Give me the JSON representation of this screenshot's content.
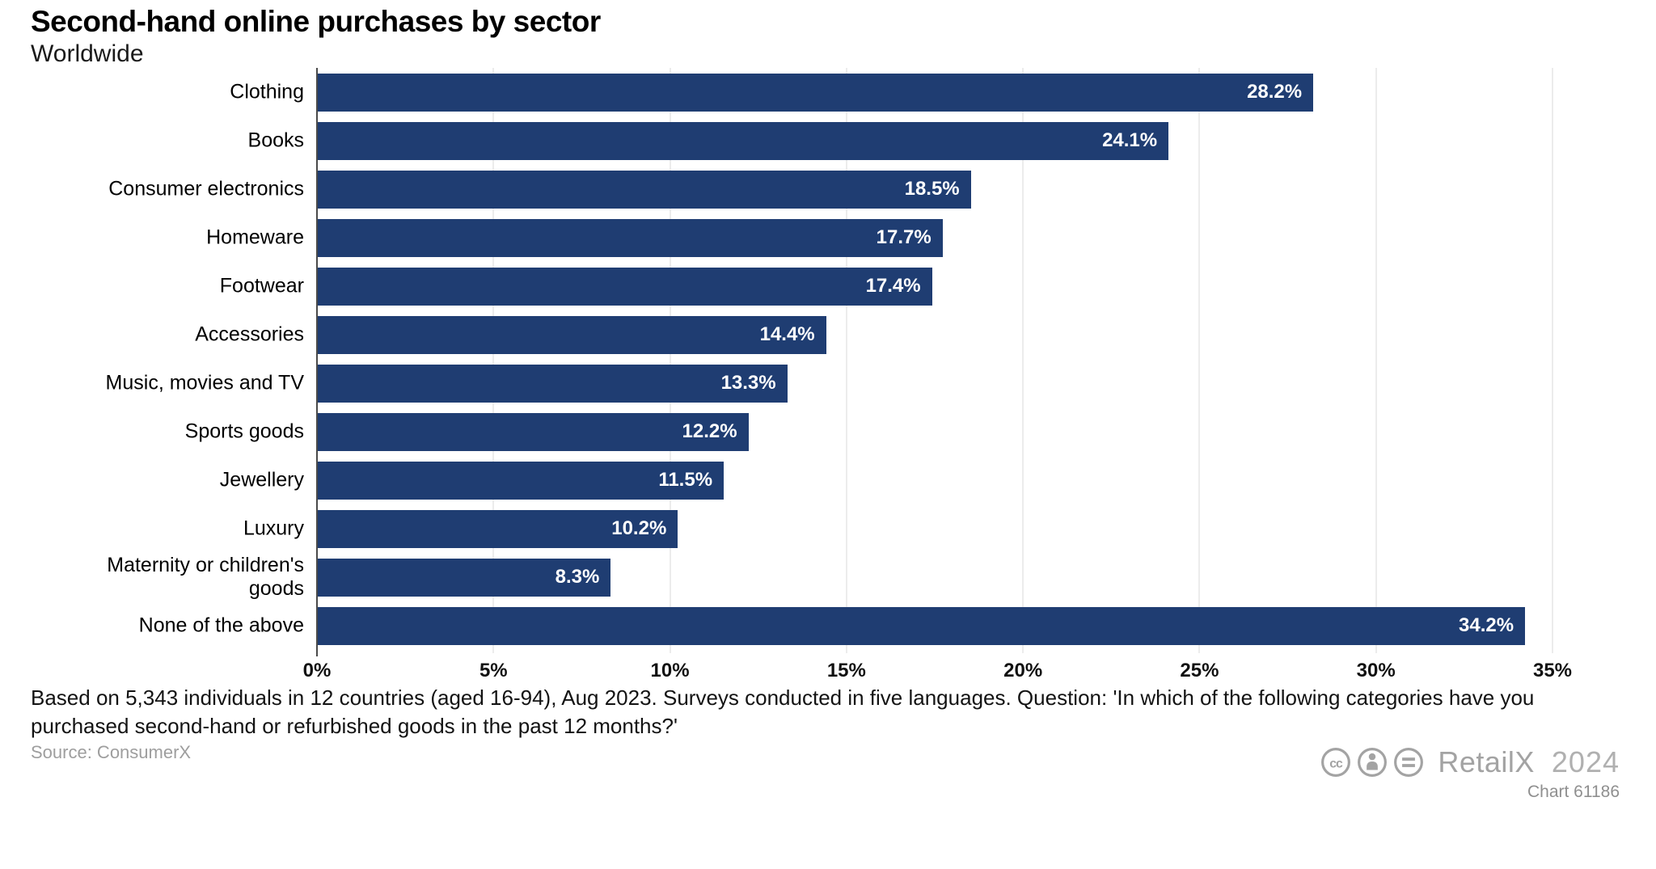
{
  "header": {
    "title": "Second-hand online purchases by sector",
    "subtitle": "Worldwide"
  },
  "chart_data": {
    "type": "bar",
    "orientation": "horizontal",
    "title": "Second-hand online purchases by sector",
    "subtitle": "Worldwide",
    "categories": [
      "Clothing",
      "Books",
      "Consumer electronics",
      "Homeware",
      "Footwear",
      "Accessories",
      "Music, movies and TV",
      "Sports goods",
      "Jewellery",
      "Luxury",
      "Maternity or children's goods",
      "None of the above"
    ],
    "values": [
      28.2,
      24.1,
      18.5,
      17.7,
      17.4,
      14.4,
      13.3,
      12.2,
      11.5,
      10.2,
      8.3,
      34.2
    ],
    "value_labels": [
      "28.2%",
      "24.1%",
      "18.5%",
      "17.7%",
      "17.4%",
      "14.4%",
      "13.3%",
      "12.2%",
      "11.5%",
      "10.2%",
      "8.3%",
      "34.2%"
    ],
    "xlabel": "",
    "ylabel": "",
    "xlim": [
      0,
      35
    ],
    "x_tick_step": 5,
    "x_tick_labels": [
      "0%",
      "5%",
      "10%",
      "15%",
      "20%",
      "25%",
      "30%",
      "35%"
    ],
    "grid": true,
    "legend": false,
    "bar_color": "#1f3d72",
    "gridline_color": "#ececec",
    "axis_color": "#4a4a4a",
    "value_label_color": "#ffffff"
  },
  "footer": {
    "note": "Based on 5,343 individuals in 12 countries (aged 16-94), Aug 2023. Surveys conducted in five languages. Question: 'In which of the following categories have you purchased second-hand or refurbished goods in the past 12 months?'",
    "source": "Source: ConsumerX",
    "branding": {
      "license_icons": [
        "cc-icon",
        "attribution-person-icon",
        "equals-icon"
      ],
      "brand": "RetailX",
      "year": "2024",
      "chart_id": "Chart 61186",
      "gray_color": "#a3a3a3"
    }
  }
}
